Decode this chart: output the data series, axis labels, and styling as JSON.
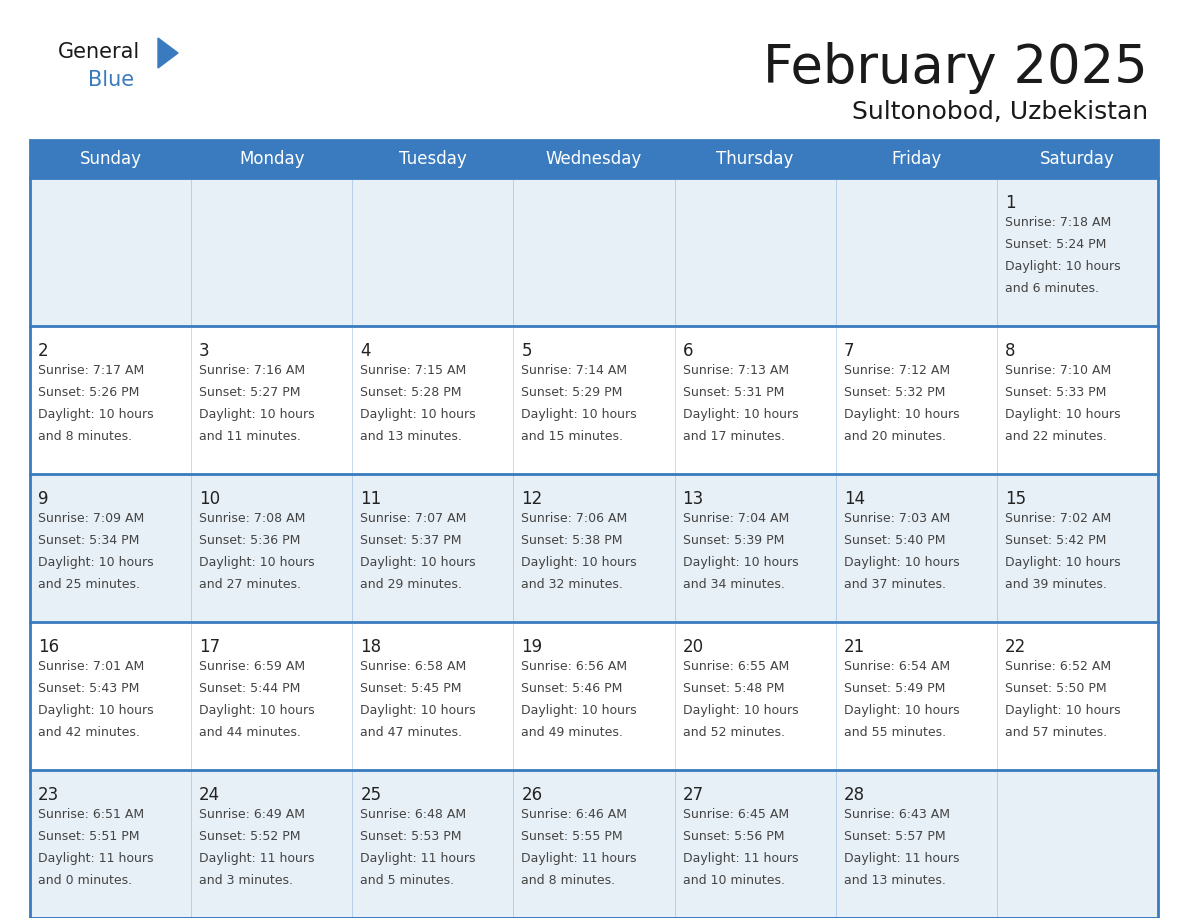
{
  "title": "February 2025",
  "subtitle": "Sultonobod, Uzbekistan",
  "days_of_week": [
    "Sunday",
    "Monday",
    "Tuesday",
    "Wednesday",
    "Thursday",
    "Friday",
    "Saturday"
  ],
  "header_bg": "#3a7bbf",
  "header_text": "#ffffff",
  "row_bg_light": "#e8f0f7",
  "row_bg_white": "#ffffff",
  "cell_border": "#3a7bbf",
  "day_num_color": "#222222",
  "info_text_color": "#444444",
  "calendar_data": [
    [
      null,
      null,
      null,
      null,
      null,
      null,
      {
        "day": 1,
        "sunrise": "7:18 AM",
        "sunset": "5:24 PM",
        "daylight": "10 hours and 6 minutes."
      }
    ],
    [
      {
        "day": 2,
        "sunrise": "7:17 AM",
        "sunset": "5:26 PM",
        "daylight": "10 hours and 8 minutes."
      },
      {
        "day": 3,
        "sunrise": "7:16 AM",
        "sunset": "5:27 PM",
        "daylight": "10 hours and 11 minutes."
      },
      {
        "day": 4,
        "sunrise": "7:15 AM",
        "sunset": "5:28 PM",
        "daylight": "10 hours and 13 minutes."
      },
      {
        "day": 5,
        "sunrise": "7:14 AM",
        "sunset": "5:29 PM",
        "daylight": "10 hours and 15 minutes."
      },
      {
        "day": 6,
        "sunrise": "7:13 AM",
        "sunset": "5:31 PM",
        "daylight": "10 hours and 17 minutes."
      },
      {
        "day": 7,
        "sunrise": "7:12 AM",
        "sunset": "5:32 PM",
        "daylight": "10 hours and 20 minutes."
      },
      {
        "day": 8,
        "sunrise": "7:10 AM",
        "sunset": "5:33 PM",
        "daylight": "10 hours and 22 minutes."
      }
    ],
    [
      {
        "day": 9,
        "sunrise": "7:09 AM",
        "sunset": "5:34 PM",
        "daylight": "10 hours and 25 minutes."
      },
      {
        "day": 10,
        "sunrise": "7:08 AM",
        "sunset": "5:36 PM",
        "daylight": "10 hours and 27 minutes."
      },
      {
        "day": 11,
        "sunrise": "7:07 AM",
        "sunset": "5:37 PM",
        "daylight": "10 hours and 29 minutes."
      },
      {
        "day": 12,
        "sunrise": "7:06 AM",
        "sunset": "5:38 PM",
        "daylight": "10 hours and 32 minutes."
      },
      {
        "day": 13,
        "sunrise": "7:04 AM",
        "sunset": "5:39 PM",
        "daylight": "10 hours and 34 minutes."
      },
      {
        "day": 14,
        "sunrise": "7:03 AM",
        "sunset": "5:40 PM",
        "daylight": "10 hours and 37 minutes."
      },
      {
        "day": 15,
        "sunrise": "7:02 AM",
        "sunset": "5:42 PM",
        "daylight": "10 hours and 39 minutes."
      }
    ],
    [
      {
        "day": 16,
        "sunrise": "7:01 AM",
        "sunset": "5:43 PM",
        "daylight": "10 hours and 42 minutes."
      },
      {
        "day": 17,
        "sunrise": "6:59 AM",
        "sunset": "5:44 PM",
        "daylight": "10 hours and 44 minutes."
      },
      {
        "day": 18,
        "sunrise": "6:58 AM",
        "sunset": "5:45 PM",
        "daylight": "10 hours and 47 minutes."
      },
      {
        "day": 19,
        "sunrise": "6:56 AM",
        "sunset": "5:46 PM",
        "daylight": "10 hours and 49 minutes."
      },
      {
        "day": 20,
        "sunrise": "6:55 AM",
        "sunset": "5:48 PM",
        "daylight": "10 hours and 52 minutes."
      },
      {
        "day": 21,
        "sunrise": "6:54 AM",
        "sunset": "5:49 PM",
        "daylight": "10 hours and 55 minutes."
      },
      {
        "day": 22,
        "sunrise": "6:52 AM",
        "sunset": "5:50 PM",
        "daylight": "10 hours and 57 minutes."
      }
    ],
    [
      {
        "day": 23,
        "sunrise": "6:51 AM",
        "sunset": "5:51 PM",
        "daylight": "11 hours and 0 minutes."
      },
      {
        "day": 24,
        "sunrise": "6:49 AM",
        "sunset": "5:52 PM",
        "daylight": "11 hours and 3 minutes."
      },
      {
        "day": 25,
        "sunrise": "6:48 AM",
        "sunset": "5:53 PM",
        "daylight": "11 hours and 5 minutes."
      },
      {
        "day": 26,
        "sunrise": "6:46 AM",
        "sunset": "5:55 PM",
        "daylight": "11 hours and 8 minutes."
      },
      {
        "day": 27,
        "sunrise": "6:45 AM",
        "sunset": "5:56 PM",
        "daylight": "11 hours and 10 minutes."
      },
      {
        "day": 28,
        "sunrise": "6:43 AM",
        "sunset": "5:57 PM",
        "daylight": "11 hours and 13 minutes."
      },
      null
    ]
  ]
}
